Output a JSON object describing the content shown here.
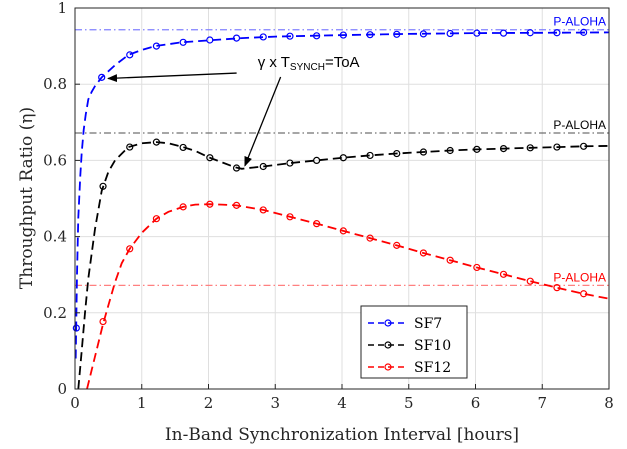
{
  "chart_data": {
    "type": "line",
    "xlabel": "In-Band Synchronization Interval [hours]",
    "ylabel": "Throughput Ratio (η)",
    "xlim": [
      0,
      8
    ],
    "ylim": [
      0,
      1
    ],
    "x_ticks": [
      "0",
      "1",
      "2",
      "3",
      "4",
      "5",
      "6",
      "7",
      "8"
    ],
    "y_ticks": [
      "0",
      "0.2",
      "0.4",
      "0.6",
      "0.8",
      "1"
    ],
    "grid": true,
    "legend_position": "bottom-center",
    "series": [
      {
        "name": "SF7",
        "color": "#0000ff",
        "line": [
          [
            0.01,
            0.08
          ],
          [
            0.03,
            0.3
          ],
          [
            0.05,
            0.45
          ],
          [
            0.08,
            0.56
          ],
          [
            0.1,
            0.62
          ],
          [
            0.13,
            0.68
          ],
          [
            0.16,
            0.72
          ],
          [
            0.2,
            0.76
          ],
          [
            0.25,
            0.78
          ],
          [
            0.3,
            0.795
          ],
          [
            0.4,
            0.818
          ],
          [
            0.6,
            0.85
          ],
          [
            0.8,
            0.877
          ],
          [
            1.0,
            0.89
          ],
          [
            1.2,
            0.9
          ],
          [
            1.6,
            0.91
          ],
          [
            2.0,
            0.915
          ],
          [
            2.5,
            0.921
          ],
          [
            3.0,
            0.925
          ],
          [
            4.0,
            0.929
          ],
          [
            5.0,
            0.932
          ],
          [
            6.0,
            0.934
          ],
          [
            7.0,
            0.935
          ],
          [
            8.0,
            0.936
          ]
        ],
        "markers": [
          [
            0.02,
            0.16
          ],
          [
            0.4,
            0.818
          ],
          [
            0.82,
            0.877
          ],
          [
            1.22,
            0.9
          ],
          [
            1.62,
            0.91
          ],
          [
            2.02,
            0.916
          ],
          [
            2.42,
            0.921
          ],
          [
            2.82,
            0.924
          ],
          [
            3.22,
            0.926
          ],
          [
            3.62,
            0.927
          ],
          [
            4.02,
            0.929
          ],
          [
            4.42,
            0.93
          ],
          [
            4.82,
            0.931
          ],
          [
            5.22,
            0.932
          ],
          [
            5.62,
            0.933
          ],
          [
            6.02,
            0.934
          ],
          [
            6.42,
            0.934
          ],
          [
            6.82,
            0.935
          ],
          [
            7.22,
            0.935
          ],
          [
            7.62,
            0.936
          ]
        ]
      },
      {
        "name": "SF10",
        "color": "#000000",
        "line": [
          [
            0.05,
            0.0
          ],
          [
            0.1,
            0.1
          ],
          [
            0.15,
            0.2
          ],
          [
            0.2,
            0.29
          ],
          [
            0.3,
            0.42
          ],
          [
            0.4,
            0.52
          ],
          [
            0.5,
            0.57
          ],
          [
            0.6,
            0.6
          ],
          [
            0.8,
            0.635
          ],
          [
            1.0,
            0.645
          ],
          [
            1.22,
            0.648
          ],
          [
            1.4,
            0.645
          ],
          [
            1.62,
            0.635
          ],
          [
            1.8,
            0.625
          ],
          [
            2.02,
            0.607
          ],
          [
            2.2,
            0.595
          ],
          [
            2.4,
            0.582
          ],
          [
            2.5,
            0.578
          ],
          [
            2.6,
            0.58
          ],
          [
            2.82,
            0.584
          ],
          [
            3.22,
            0.593
          ],
          [
            3.62,
            0.6
          ],
          [
            4.02,
            0.607
          ],
          [
            4.42,
            0.613
          ],
          [
            4.82,
            0.618
          ],
          [
            5.22,
            0.622
          ],
          [
            5.62,
            0.626
          ],
          [
            6.02,
            0.629
          ],
          [
            6.42,
            0.631
          ],
          [
            6.82,
            0.633
          ],
          [
            7.22,
            0.635
          ],
          [
            7.62,
            0.637
          ],
          [
            8.0,
            0.638
          ]
        ],
        "markers": [
          [
            0.42,
            0.532
          ],
          [
            0.82,
            0.635
          ],
          [
            1.22,
            0.648
          ],
          [
            1.62,
            0.634
          ],
          [
            2.02,
            0.607
          ],
          [
            2.42,
            0.58
          ],
          [
            2.82,
            0.584
          ],
          [
            3.22,
            0.593
          ],
          [
            3.62,
            0.6
          ],
          [
            4.02,
            0.607
          ],
          [
            4.42,
            0.613
          ],
          [
            4.82,
            0.618
          ],
          [
            5.22,
            0.622
          ],
          [
            5.62,
            0.626
          ],
          [
            6.02,
            0.629
          ],
          [
            6.42,
            0.631
          ],
          [
            6.82,
            0.633
          ],
          [
            7.22,
            0.635
          ],
          [
            7.62,
            0.637
          ]
        ]
      },
      {
        "name": "SF12",
        "color": "#ff0000",
        "line": [
          [
            0.18,
            0.0
          ],
          [
            0.25,
            0.05
          ],
          [
            0.32,
            0.1
          ],
          [
            0.42,
            0.17
          ],
          [
            0.5,
            0.22
          ],
          [
            0.6,
            0.28
          ],
          [
            0.7,
            0.33
          ],
          [
            0.82,
            0.368
          ],
          [
            1.0,
            0.41
          ],
          [
            1.22,
            0.447
          ],
          [
            1.4,
            0.465
          ],
          [
            1.62,
            0.478
          ],
          [
            1.8,
            0.484
          ],
          [
            2.02,
            0.485
          ],
          [
            2.2,
            0.484
          ],
          [
            2.42,
            0.482
          ],
          [
            2.82,
            0.47
          ],
          [
            3.22,
            0.452
          ],
          [
            3.62,
            0.434
          ],
          [
            4.02,
            0.415
          ],
          [
            4.42,
            0.396
          ],
          [
            4.82,
            0.377
          ],
          [
            5.22,
            0.357
          ],
          [
            5.62,
            0.338
          ],
          [
            6.02,
            0.319
          ],
          [
            6.42,
            0.301
          ],
          [
            6.82,
            0.283
          ],
          [
            7.22,
            0.266
          ],
          [
            7.62,
            0.25
          ],
          [
            8.0,
            0.237
          ]
        ],
        "markers": [
          [
            0.42,
            0.177
          ],
          [
            0.82,
            0.368
          ],
          [
            1.22,
            0.447
          ],
          [
            1.62,
            0.478
          ],
          [
            2.02,
            0.485
          ],
          [
            2.42,
            0.482
          ],
          [
            2.82,
            0.47
          ],
          [
            3.22,
            0.452
          ],
          [
            3.62,
            0.434
          ],
          [
            4.02,
            0.415
          ],
          [
            4.42,
            0.396
          ],
          [
            4.82,
            0.377
          ],
          [
            5.22,
            0.357
          ],
          [
            5.62,
            0.338
          ],
          [
            6.02,
            0.319
          ],
          [
            6.42,
            0.301
          ],
          [
            6.82,
            0.283
          ],
          [
            7.22,
            0.266
          ],
          [
            7.62,
            0.25
          ]
        ]
      }
    ],
    "reference_lines": [
      {
        "label": "P-ALOHA",
        "y": 0.943,
        "color": "#0000ff",
        "line_color": "#8080ff"
      },
      {
        "label": "P-ALOHA",
        "y": 0.672,
        "color": "#000000",
        "line_color": "#707070"
      },
      {
        "label": "P-ALOHA",
        "y": 0.272,
        "color": "#ff0000",
        "line_color": "#ff8080"
      }
    ],
    "annotation": {
      "prefix": "γ x T",
      "subscript": "SYNCH",
      "suffix": "=ToA",
      "text_anchor_xy": [
        3.5,
        0.845
      ],
      "arrows_to": [
        [
          0.45,
          0.815
        ],
        [
          2.5,
          0.578
        ]
      ]
    }
  }
}
